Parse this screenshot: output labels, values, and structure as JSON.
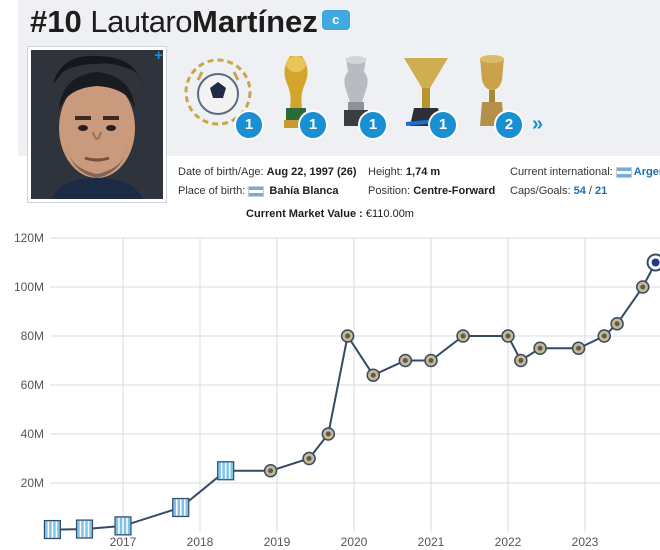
{
  "player": {
    "number": "#10",
    "first_name": "Lautaro",
    "last_name": "Martínez",
    "captain_badge": "c"
  },
  "trophies": [
    {
      "name": "laurel-ball-icon",
      "count": "1"
    },
    {
      "name": "world-cup-trophy-icon",
      "count": "1"
    },
    {
      "name": "copa-america-trophy-icon",
      "count": "1"
    },
    {
      "name": "league-trophy-icon",
      "count": "1"
    },
    {
      "name": "cup-trophy-icon",
      "count": "2"
    }
  ],
  "more_icon": "double-chevron-right-icon",
  "info": {
    "dob_label": "Date of birth/Age:",
    "dob_value": "Aug 22, 1997 (26)",
    "pob_label": "Place of birth:",
    "pob_value": "Bahía Blanca",
    "height_label": "Height:",
    "height_value": "1,74 m",
    "position_label": "Position:",
    "position_value": "Centre-Forward",
    "intl_label": "Current international:",
    "intl_value": "Argen",
    "caps_label": "Caps/Goals:",
    "caps_value": "54",
    "caps_sep": "/",
    "goals_value": "21"
  },
  "market_value": {
    "label": "Current Market Value :",
    "value": "€110.00m"
  },
  "colors": {
    "line": "#344a66",
    "grid": "#d8dbe0",
    "accent": "#1a8fd1",
    "racing_marker": "#7fc3ea",
    "inter_marker": "#c9b98a"
  },
  "chart_data": {
    "type": "line",
    "ylim": [
      0,
      120
    ],
    "y_ticks": [
      20,
      40,
      60,
      80,
      100,
      120
    ],
    "y_tick_labels": [
      "20M",
      "40M",
      "60M",
      "80M",
      "100M",
      "120M"
    ],
    "x_ticks": [
      2017,
      2018,
      2019,
      2020,
      2021,
      2022,
      2023
    ],
    "x_tick_labels": [
      "2017",
      "2018",
      "2019",
      "2020",
      "2021",
      "2022",
      "2023"
    ],
    "grid": true,
    "points": [
      {
        "date": "2016-02",
        "value": 1,
        "club": "Racing Club"
      },
      {
        "date": "2016-07",
        "value": 1.2,
        "club": "Racing Club"
      },
      {
        "date": "2017-01",
        "value": 2.5,
        "club": "Racing Club"
      },
      {
        "date": "2017-10",
        "value": 10,
        "club": "Racing Club"
      },
      {
        "date": "2018-05",
        "value": 25,
        "club": "Racing Club"
      },
      {
        "date": "2018-12",
        "value": 25,
        "club": "Inter"
      },
      {
        "date": "2019-06",
        "value": 30,
        "club": "Inter"
      },
      {
        "date": "2019-09",
        "value": 40,
        "club": "Inter"
      },
      {
        "date": "2019-12",
        "value": 80,
        "club": "Inter"
      },
      {
        "date": "2020-04",
        "value": 64,
        "club": "Inter"
      },
      {
        "date": "2020-09",
        "value": 70,
        "club": "Inter"
      },
      {
        "date": "2021-01",
        "value": 70,
        "club": "Inter"
      },
      {
        "date": "2021-06",
        "value": 80,
        "club": "Inter"
      },
      {
        "date": "2022-01",
        "value": 80,
        "club": "Inter"
      },
      {
        "date": "2022-03",
        "value": 70,
        "club": "Inter"
      },
      {
        "date": "2022-06",
        "value": 75,
        "club": "Inter"
      },
      {
        "date": "2022-12",
        "value": 75,
        "club": "Inter"
      },
      {
        "date": "2023-04",
        "value": 80,
        "club": "Inter"
      },
      {
        "date": "2023-06",
        "value": 85,
        "club": "Inter"
      },
      {
        "date": "2023-10",
        "value": 100,
        "club": "Inter"
      },
      {
        "date": "2023-12",
        "value": 110,
        "club": "Inter"
      }
    ]
  }
}
